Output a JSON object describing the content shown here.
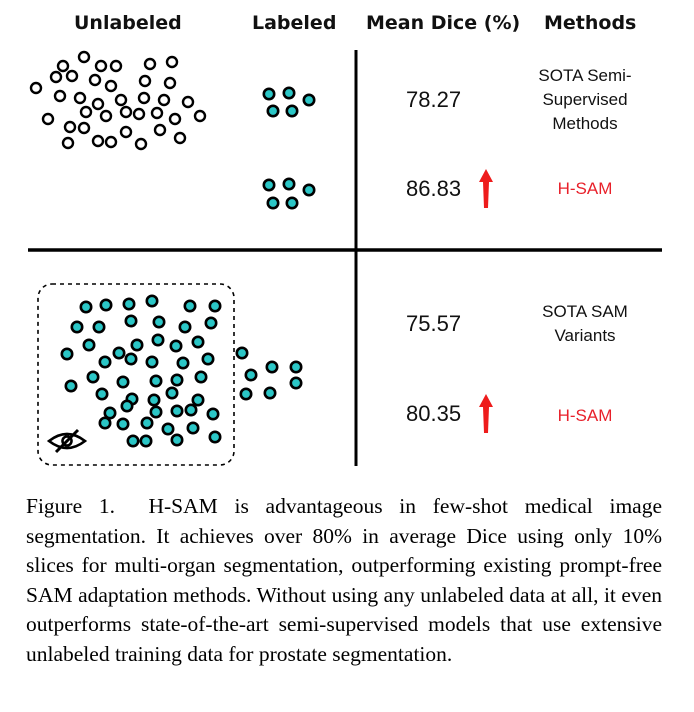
{
  "headers": {
    "unlabeled": "Unlabeled",
    "labeled": "Labeled",
    "mean_dice": "Mean Dice (%)",
    "methods": "Methods"
  },
  "rows": [
    {
      "dice": "78.27",
      "method_lines": [
        "SOTA Semi-",
        "Supervised",
        "Methods"
      ],
      "highlight": false
    },
    {
      "dice": "86.83",
      "method_lines": [
        "H-SAM"
      ],
      "highlight": true
    },
    {
      "dice": "75.57",
      "method_lines": [
        "SOTA SAM",
        "Variants"
      ],
      "highlight": false
    },
    {
      "dice": "80.35",
      "method_lines": [
        "H-SAM"
      ],
      "highlight": true
    }
  ],
  "icons": {
    "unlabeled_dot": "empty-circle",
    "labeled_dot": "cyan-filled-circle",
    "improvement": "red-up-arrow",
    "hidden": "eye-slash-icon"
  },
  "colors": {
    "labeled_fill": "#2bc6c6",
    "highlight_text": "#e8202a",
    "arrow": "#ee1c1c"
  },
  "caption": {
    "label": "Figure 1.",
    "text": "H-SAM is advantageous in few-shot medical image segmentation. It achieves over 80% in average Dice using only 10% slices for multi-organ segmentation, outperforming existing prompt-free SAM adaptation methods. Without using any unlabeled data at all, it even outperforms state-of-the-art semi-supervised models that use extensive unlabeled training data for prostate segmentation."
  }
}
